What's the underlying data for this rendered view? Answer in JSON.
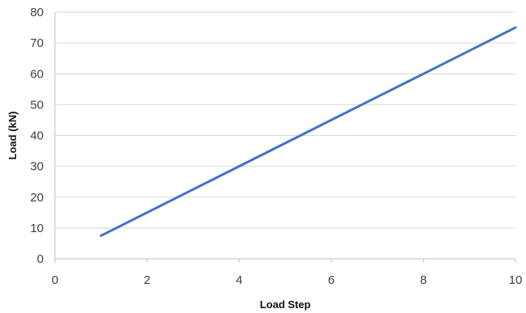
{
  "chart_data": {
    "type": "line",
    "title": "",
    "xlabel": "Load Step",
    "ylabel": "Load (kN)",
    "xlim": [
      0,
      10
    ],
    "ylim": [
      0,
      80
    ],
    "xticks": [
      "0",
      "2",
      "4",
      "6",
      "8",
      "10"
    ],
    "yticks": [
      "0",
      "10",
      "20",
      "30",
      "40",
      "50",
      "60",
      "70",
      "80"
    ],
    "grid": "horizontal",
    "legend": "none",
    "series": [
      {
        "color": "#4472c4",
        "x": [
          1,
          2,
          3,
          4,
          5,
          6,
          7,
          8,
          9,
          10
        ],
        "y": [
          7.5,
          15,
          22.5,
          30,
          37.5,
          45,
          52.5,
          60,
          67.5,
          75
        ]
      }
    ]
  }
}
